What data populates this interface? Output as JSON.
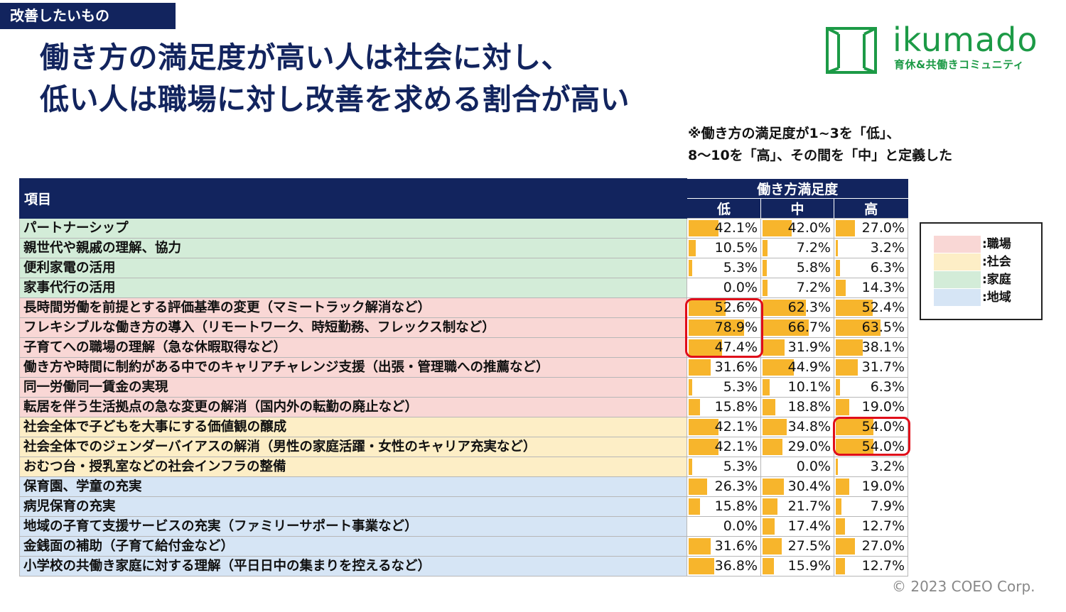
{
  "section_tag": "改善したいもの",
  "title": {
    "line1": "働き方の満足度が高い人は社会に対し、",
    "line2": "低い人は職場に対し改善を求める割合が高い"
  },
  "logo": {
    "name": "ikumado",
    "subtitle": "育休&共働きコミュニティ",
    "accent": "#1c9a46"
  },
  "note": {
    "line1": "※働き方の満足度が1~3を「低」、",
    "line2": "8～10を「高」、その間を「中」と定義した"
  },
  "legend": [
    {
      "label": ":職場",
      "color": "#f9d7d5"
    },
    {
      "label": ":社会",
      "color": "#fdeec6"
    },
    {
      "label": ":家庭",
      "color": "#d3ecd8"
    },
    {
      "label": ":地域",
      "color": "#d6e5f5"
    }
  ],
  "copyright": "© 2023 COEO Corp.",
  "colors": {
    "header": "#12245e",
    "bar": "#f7b52c",
    "highlight": "#e00d1a"
  },
  "chart_data": {
    "type": "table",
    "title": "働き方の満足度が高い人は社会に対し、低い人は職場に対し改善を求める割合が高い",
    "item_header": "項目",
    "group_header": "働き方満足度",
    "columns": [
      "低",
      "中",
      "高"
    ],
    "unit": "%",
    "rows": [
      {
        "item": "パートナーシップ",
        "category": "家庭",
        "values": [
          42.1,
          42.0,
          27.0
        ]
      },
      {
        "item": "親世代や親戚の理解、協力",
        "category": "家庭",
        "values": [
          10.5,
          7.2,
          3.2
        ]
      },
      {
        "item": "便利家電の活用",
        "category": "家庭",
        "values": [
          5.3,
          5.8,
          6.3
        ]
      },
      {
        "item": "家事代行の活用",
        "category": "家庭",
        "values": [
          0.0,
          7.2,
          14.3
        ]
      },
      {
        "item": "長時間労働を前提とする評価基準の変更（マミートラック解消など）",
        "category": "職場",
        "values": [
          52.6,
          62.3,
          52.4
        ]
      },
      {
        "item": "フレキシブルな働き方の導入（リモートワーク、時短勤務、フレックス制など）",
        "category": "職場",
        "values": [
          78.9,
          66.7,
          63.5
        ]
      },
      {
        "item": "子育てへの職場の理解（急な休暇取得など）",
        "category": "職場",
        "values": [
          47.4,
          31.9,
          38.1
        ]
      },
      {
        "item": "働き方や時間に制約がある中でのキャリアチャレンジ支援（出張・管理職への推薦など）",
        "category": "職場",
        "values": [
          31.6,
          44.9,
          31.7
        ]
      },
      {
        "item": "同一労働同一賃金の実現",
        "category": "職場",
        "values": [
          5.3,
          10.1,
          6.3
        ]
      },
      {
        "item": "転居を伴う生活拠点の急な変更の解消（国内外の転勤の廃止など）",
        "category": "職場",
        "values": [
          15.8,
          18.8,
          19.0
        ]
      },
      {
        "item": "社会全体で子どもを大事にする価値観の醸成",
        "category": "社会",
        "values": [
          42.1,
          34.8,
          54.0
        ]
      },
      {
        "item": "社会全体でのジェンダーバイアスの解消（男性の家庭活躍・女性のキャリア充実など）",
        "category": "社会",
        "values": [
          42.1,
          29.0,
          54.0
        ]
      },
      {
        "item": "おむつ台・授乳室などの社会インフラの整備",
        "category": "社会",
        "values": [
          5.3,
          0.0,
          3.2
        ]
      },
      {
        "item": "保育園、学童の充実",
        "category": "地域",
        "values": [
          26.3,
          30.4,
          19.0
        ]
      },
      {
        "item": "病児保育の充実",
        "category": "地域",
        "values": [
          15.8,
          21.7,
          7.9
        ]
      },
      {
        "item": "地域の子育て支援サービスの充実（ファミリーサポート事業など）",
        "category": "地域",
        "values": [
          0.0,
          17.4,
          12.7
        ]
      },
      {
        "item": "金銭面の補助（子育て給付金など）",
        "category": "地域",
        "values": [
          31.6,
          27.5,
          27.0
        ]
      },
      {
        "item": "小学校の共働き家庭に対する理解（平日日中の集まりを控えるなど）",
        "category": "地域",
        "values": [
          36.8,
          15.9,
          12.7
        ]
      }
    ],
    "bar_max": 100
  }
}
